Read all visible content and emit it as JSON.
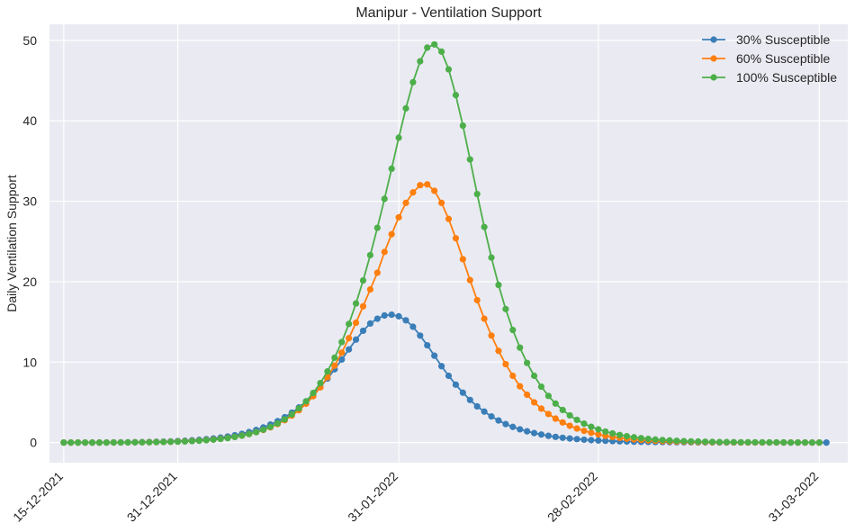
{
  "chart_data": {
    "type": "line",
    "title": "Manipur - Ventilation Support",
    "xlabel": "",
    "ylabel": "Daily Ventilation Support",
    "x_start": "15-12-2021",
    "x_end": "31-03-2022",
    "xlim": [
      "13-12-2021",
      "04-04-2022"
    ],
    "ylim": [
      -2.5,
      52
    ],
    "yticks": [
      0,
      10,
      20,
      30,
      40,
      50
    ],
    "xticks": [
      "15-12-2021",
      "31-12-2021",
      "31-01-2022",
      "28-02-2022",
      "31-03-2022"
    ],
    "grid": true,
    "legend_position": "top-right",
    "background_color": "#eaeaf2",
    "series": [
      {
        "name": "30% Susceptible",
        "color": "#3a7eb8",
        "values": [
          0,
          0,
          0,
          0,
          0,
          0,
          0.01,
          0.02,
          0.03,
          0.04,
          0.05,
          0.06,
          0.08,
          0.1,
          0.12,
          0.15,
          0.19,
          0.23,
          0.28,
          0.34,
          0.42,
          0.51,
          0.62,
          0.75,
          0.91,
          1.09,
          1.31,
          1.57,
          1.88,
          2.24,
          2.66,
          3.15,
          3.72,
          4.37,
          5.12,
          5.96,
          6.91,
          7.96,
          9.11,
          10.33,
          11.58,
          12.8,
          13.9,
          14.8,
          15.4,
          15.8,
          15.9,
          15.7,
          15.2,
          14.4,
          13.3,
          12.1,
          10.8,
          9.5,
          8.3,
          7.2,
          6.2,
          5.3,
          4.5,
          3.85,
          3.25,
          2.75,
          2.3,
          1.95,
          1.65,
          1.4,
          1.18,
          1.0,
          0.84,
          0.71,
          0.6,
          0.51,
          0.43,
          0.36,
          0.3,
          0.26,
          0.22,
          0.18,
          0.15,
          0.13,
          0.11,
          0.09,
          0.08,
          0.07,
          0.06,
          0.05,
          0.04,
          0.03,
          0.03,
          0.02,
          0.02,
          0.02,
          0.01,
          0.01,
          0.01,
          0.01,
          0.01,
          0.01,
          0.01,
          0.01,
          0.01,
          0,
          0,
          0,
          0,
          0,
          0,
          0
        ]
      },
      {
        "name": "60% Susceptible",
        "color": "#ff7f0e",
        "values": [
          0,
          0,
          0,
          0,
          0,
          0,
          0,
          0.01,
          0.01,
          0.02,
          0.03,
          0.04,
          0.05,
          0.06,
          0.08,
          0.1,
          0.13,
          0.16,
          0.2,
          0.25,
          0.31,
          0.38,
          0.47,
          0.58,
          0.71,
          0.87,
          1.06,
          1.29,
          1.57,
          1.9,
          2.3,
          2.78,
          3.35,
          4.03,
          4.83,
          5.77,
          6.86,
          8.12,
          9.56,
          11.18,
          12.97,
          14.9,
          16.94,
          19.04,
          21.12,
          23.7,
          25.9,
          28.0,
          29.8,
          31.1,
          32.0,
          32.1,
          31.3,
          29.8,
          27.8,
          25.4,
          22.8,
          20.2,
          17.7,
          15.4,
          13.3,
          11.4,
          9.75,
          8.3,
          7.0,
          5.95,
          5.0,
          4.22,
          3.55,
          2.98,
          2.5,
          2.09,
          1.75,
          1.46,
          1.22,
          1.01,
          0.84,
          0.7,
          0.58,
          0.48,
          0.4,
          0.33,
          0.27,
          0.22,
          0.18,
          0.15,
          0.12,
          0.1,
          0.08,
          0.07,
          0.05,
          0.04,
          0.04,
          0.03,
          0.02,
          0.02,
          0.02,
          0.01,
          0.01,
          0.01,
          0.01,
          0.01,
          0.01,
          0,
          0,
          0,
          0
        ]
      },
      {
        "name": "100% Susceptible",
        "color": "#4daf4a",
        "values": [
          0,
          0,
          0,
          0,
          0,
          0,
          0,
          0.01,
          0.01,
          0.02,
          0.02,
          0.03,
          0.04,
          0.05,
          0.07,
          0.09,
          0.11,
          0.14,
          0.18,
          0.23,
          0.29,
          0.36,
          0.45,
          0.56,
          0.7,
          0.86,
          1.06,
          1.3,
          1.6,
          1.95,
          2.38,
          2.89,
          3.51,
          4.25,
          5.13,
          6.17,
          7.4,
          8.85,
          10.55,
          12.5,
          14.75,
          17.3,
          20.15,
          23.3,
          26.7,
          30.3,
          34.05,
          37.9,
          41.55,
          44.8,
          47.4,
          49.1,
          49.5,
          48.6,
          46.4,
          43.2,
          39.4,
          35.2,
          30.9,
          26.8,
          23.0,
          19.6,
          16.6,
          14.0,
          11.8,
          9.9,
          8.3,
          6.95,
          5.8,
          4.85,
          4.05,
          3.38,
          2.82,
          2.35,
          1.96,
          1.64,
          1.37,
          1.14,
          0.95,
          0.79,
          0.66,
          0.55,
          0.46,
          0.38,
          0.32,
          0.27,
          0.22,
          0.18,
          0.15,
          0.13,
          0.11,
          0.09,
          0.07,
          0.06,
          0.05,
          0.04,
          0.04,
          0.03,
          0.03,
          0.02,
          0.02,
          0.02,
          0.01,
          0.01,
          0.01,
          0.01,
          0.01
        ]
      }
    ]
  }
}
